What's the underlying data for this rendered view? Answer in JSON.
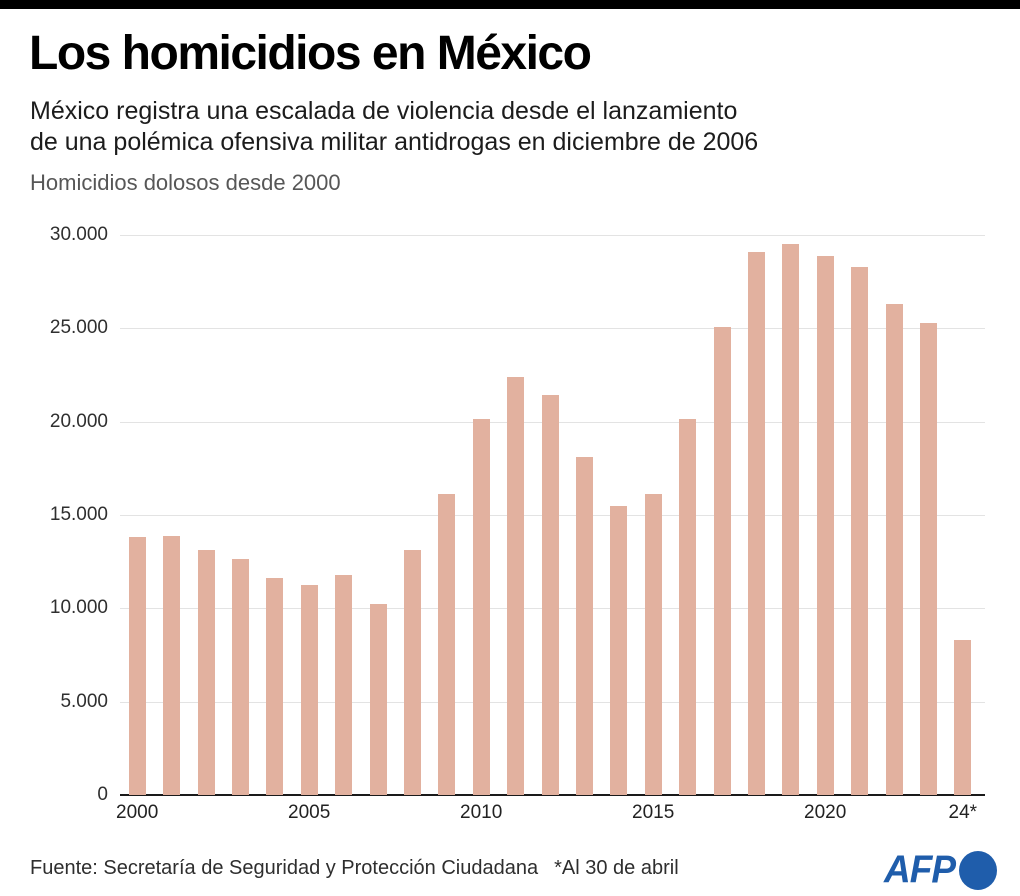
{
  "header": {
    "title": "Los homicidios en México",
    "subtitle_line1": "México registra una escalada de violencia desde el lanzamiento",
    "subtitle_line2": "de una polémica ofensiva militar antidrogas en diciembre de 2006",
    "kicker": "Homicidios dolosos desde 2000"
  },
  "footer": {
    "source": "Fuente: Secretaría de Seguridad y Protección Ciudadana",
    "note": "*Al 30 de abril",
    "logo_text": "AFP"
  },
  "colors": {
    "bar": "#e2b19f",
    "afp_blue": "#1f5dab",
    "gridline": "#e3e3e3",
    "axis": "#1a1a1a"
  },
  "chart_data": {
    "type": "bar",
    "title": "Homicidios dolosos desde 2000",
    "categories": [
      "2000",
      "2001",
      "2002",
      "2003",
      "2004",
      "2005",
      "2006",
      "2007",
      "2008",
      "2009",
      "2010",
      "2011",
      "2012",
      "2013",
      "2014",
      "2015",
      "2016",
      "2017",
      "2018",
      "2019",
      "2020",
      "2021",
      "2022",
      "2023",
      "2024*"
    ],
    "values": [
      13800,
      13850,
      13150,
      12650,
      11650,
      11250,
      11800,
      10250,
      13150,
      16100,
      20150,
      22400,
      21450,
      18100,
      15500,
      16100,
      20150,
      25050,
      29100,
      29500,
      28850,
      28300,
      26300,
      25300,
      8300
    ],
    "xlabel": "",
    "ylabel": "",
    "ylim": [
      0,
      30000
    ],
    "grid": "horizontal",
    "legend": "none",
    "bar_color": "#e2b19f",
    "yticks": [
      {
        "label": "30.000",
        "value": 30000
      },
      {
        "label": "25.000",
        "value": 25000
      },
      {
        "label": "20.000",
        "value": 20000
      },
      {
        "label": "15.000",
        "value": 15000
      },
      {
        "label": "10.000",
        "value": 10000
      },
      {
        "label": "5.000",
        "value": 5000
      },
      {
        "label": "0",
        "value": 0
      }
    ],
    "xticks": [
      {
        "label": "2000",
        "index": 0
      },
      {
        "label": "2005",
        "index": 5
      },
      {
        "label": "2010",
        "index": 10
      },
      {
        "label": "2015",
        "index": 15
      },
      {
        "label": "2020",
        "index": 20
      },
      {
        "label": "24*",
        "index": 24
      }
    ],
    "annotation": "*Al 30 de abril"
  }
}
